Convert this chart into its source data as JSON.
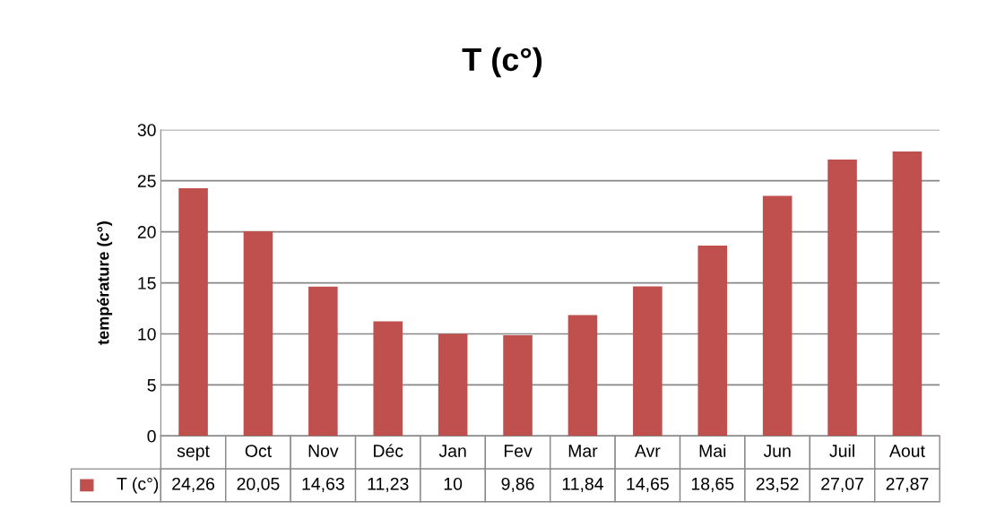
{
  "chart_data": {
    "type": "bar",
    "title": "T (c°)",
    "ylabel": "température (c°)",
    "categories": [
      "sept",
      "Oct",
      "Nov",
      "Déc",
      "Jan",
      "Fev",
      "Mar",
      "Avr",
      "Mai",
      "Jun",
      "Juil",
      "Aout"
    ],
    "series": [
      {
        "name": "T (c°)",
        "color": "#c0504d",
        "values": [
          24.26,
          20.05,
          14.63,
          11.23,
          10,
          9.86,
          11.84,
          14.65,
          18.65,
          23.52,
          27.07,
          27.87
        ],
        "value_labels": [
          "24,26",
          "20,05",
          "14,63",
          "11,23",
          "10",
          "9,86",
          "11,84",
          "14,65",
          "18,65",
          "23,52",
          "27,07",
          "27,87"
        ]
      }
    ],
    "ylim": [
      0,
      30
    ],
    "yticks": [
      0,
      5,
      10,
      15,
      20,
      25,
      30
    ],
    "grid": "y"
  }
}
